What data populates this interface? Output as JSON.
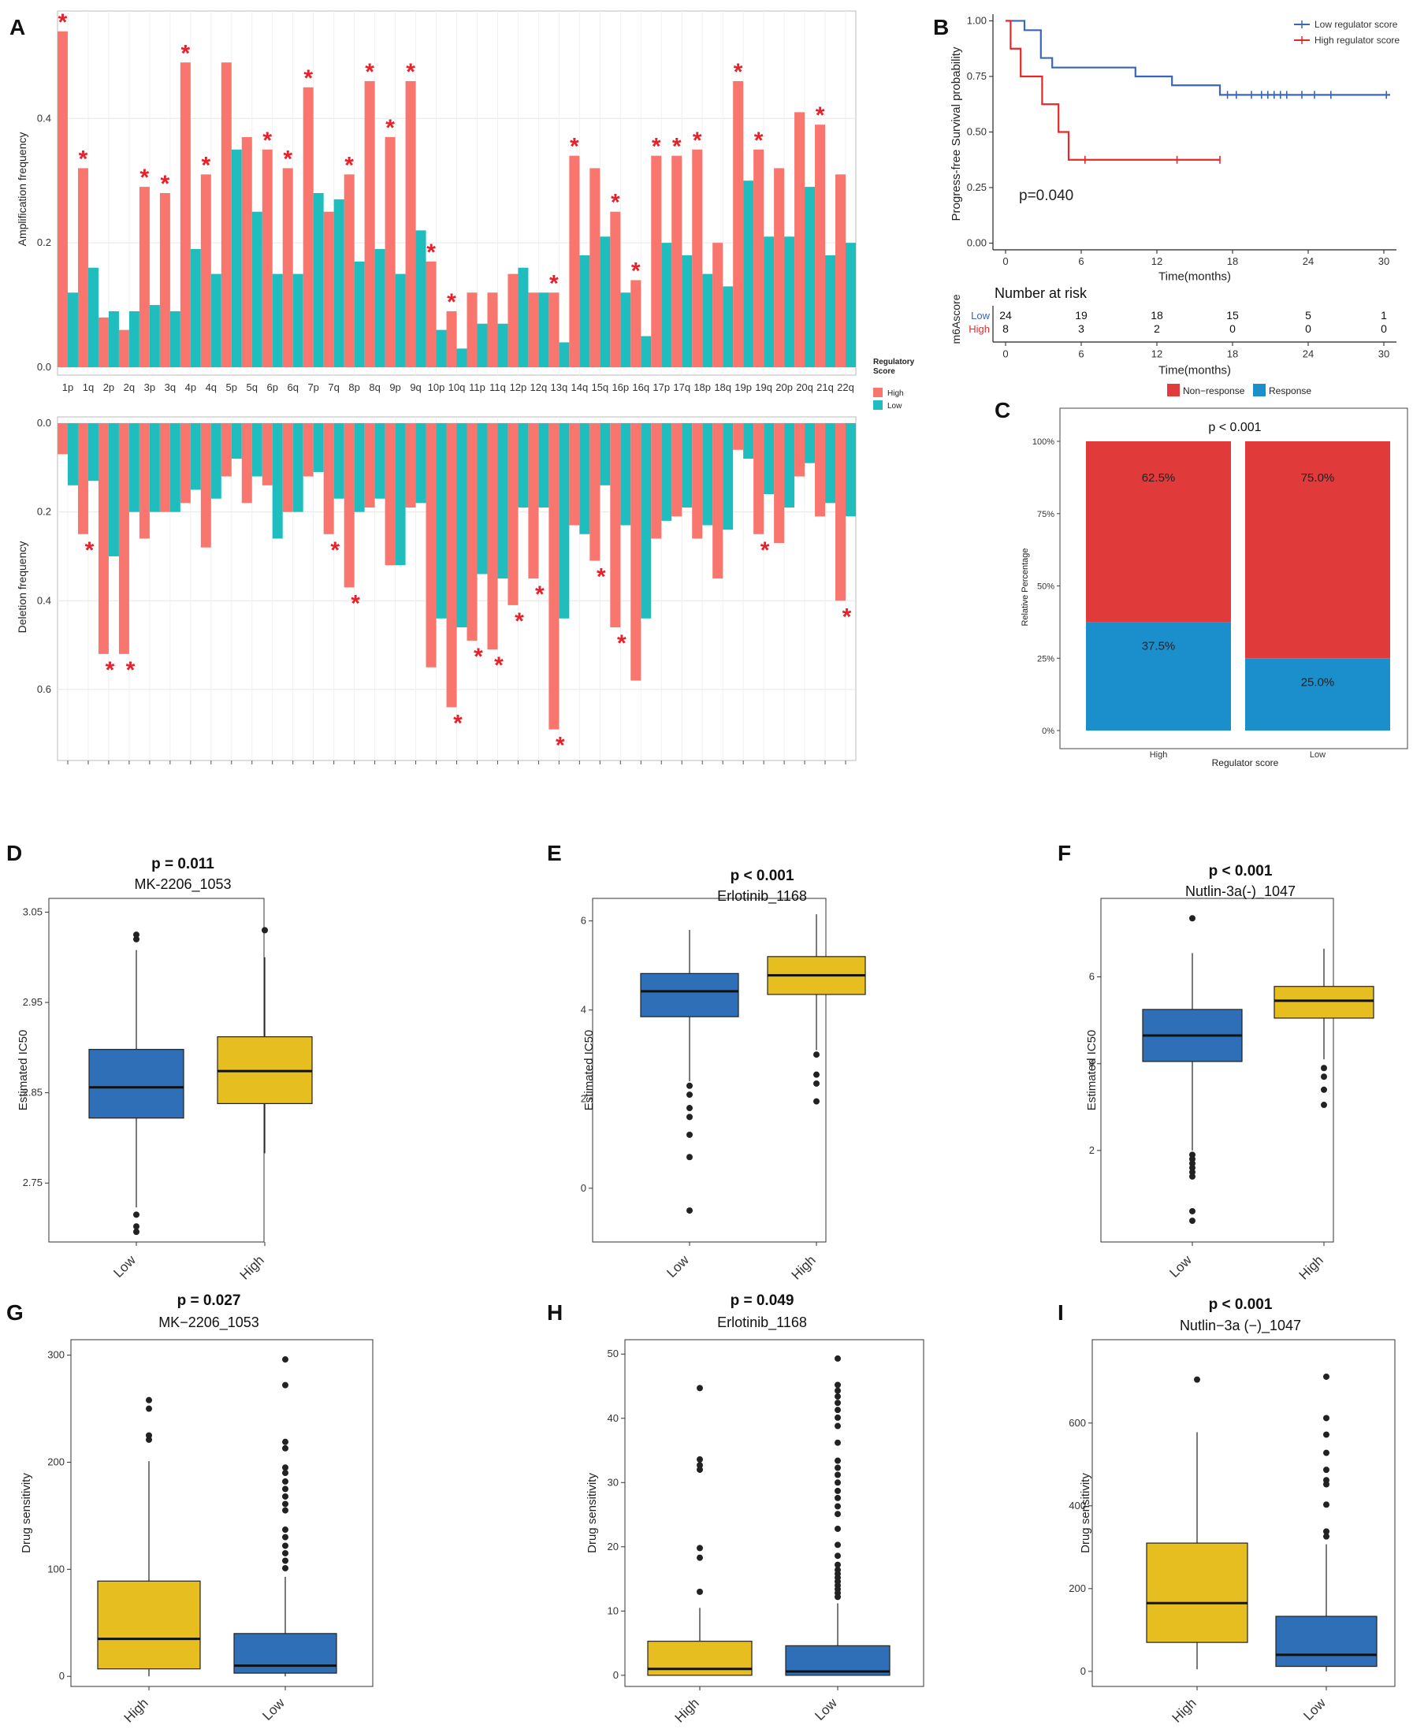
{
  "panel_labels": [
    "A",
    "B",
    "C",
    "D",
    "E",
    "F",
    "G",
    "H",
    "I"
  ],
  "colors": {
    "high": "#F8766D",
    "low": "#1FBDBD",
    "star": "#E8202A",
    "km_low": "#3A66B8",
    "km_high": "#E82828",
    "nonresp": "#E03A3A",
    "resp": "#1A8FCC",
    "box_blue": "#2E6FB7",
    "box_yellow": "#E6BE1F",
    "grid": "#E6E6E6",
    "panel_bg": "#FFFFFF"
  },
  "chart_data": [
    {
      "id": "A_amp",
      "type": "bar",
      "categories": [
        "1p",
        "1q",
        "2p",
        "2q",
        "3p",
        "3q",
        "4p",
        "4q",
        "5p",
        "5q",
        "6p",
        "6q",
        "7p",
        "7q",
        "8p",
        "8q",
        "9p",
        "9q",
        "10p",
        "10q",
        "11p",
        "11q",
        "12p",
        "12q",
        "13q",
        "14q",
        "15q",
        "16p",
        "16q",
        "17p",
        "17q",
        "18p",
        "18q",
        "19p",
        "19q",
        "20p",
        "20q",
        "21q",
        "22q"
      ],
      "series": [
        {
          "name": "High",
          "values": [
            0.54,
            0.32,
            0.08,
            0.06,
            0.29,
            0.28,
            0.49,
            0.31,
            0.49,
            0.37,
            0.35,
            0.32,
            0.45,
            0.25,
            0.31,
            0.46,
            0.37,
            0.46,
            0.17,
            0.09,
            0.12,
            0.12,
            0.15,
            0.12,
            0.12,
            0.34,
            0.32,
            0.25,
            0.14,
            0.34,
            0.34,
            0.35,
            0.2,
            0.46,
            0.35,
            0.32,
            0.41,
            0.39,
            0.31
          ]
        },
        {
          "name": "Low",
          "values": [
            0.12,
            0.16,
            0.09,
            0.09,
            0.1,
            0.09,
            0.19,
            0.15,
            0.35,
            0.25,
            0.15,
            0.15,
            0.28,
            0.27,
            0.17,
            0.19,
            0.15,
            0.22,
            0.06,
            0.03,
            0.07,
            0.07,
            0.16,
            0.12,
            0.04,
            0.18,
            0.21,
            0.12,
            0.05,
            0.2,
            0.18,
            0.15,
            0.13,
            0.3,
            0.21,
            0.21,
            0.29,
            0.18,
            0.2
          ]
        }
      ],
      "significant": [
        "1p",
        "1q",
        "3p",
        "3q",
        "4p",
        "4q",
        "6p",
        "6q",
        "7p",
        "8p",
        "8q",
        "9p",
        "9q",
        "10p",
        "10q",
        "13q",
        "14q",
        "16p",
        "16q",
        "17p",
        "17q",
        "18p",
        "19p",
        "19q",
        "21q"
      ],
      "ylabel": "Amplification frequency",
      "ylim": [
        0,
        0.56
      ],
      "yticks": [
        "0.0",
        "0.2",
        "0.4"
      ],
      "legend": {
        "title_line1": "Regulatory",
        "title_line2": "Score",
        "items": [
          "High",
          "Low"
        ]
      }
    },
    {
      "id": "A_del",
      "type": "bar",
      "categories": [
        "1p",
        "1q",
        "2p",
        "2q",
        "3p",
        "3q",
        "4p",
        "4q",
        "5p",
        "5q",
        "6p",
        "6q",
        "7p",
        "7q",
        "8p",
        "8q",
        "9p",
        "9q",
        "10p",
        "10q",
        "11p",
        "11q",
        "12p",
        "12q",
        "13q",
        "14q",
        "15q",
        "16p",
        "16q",
        "17p",
        "17q",
        "18p",
        "18q",
        "19p",
        "19q",
        "20p",
        "20q",
        "21q",
        "22q"
      ],
      "series": [
        {
          "name": "High",
          "values": [
            0.07,
            0.25,
            0.52,
            0.52,
            0.26,
            0.2,
            0.18,
            0.28,
            0.12,
            0.18,
            0.14,
            0.2,
            0.12,
            0.25,
            0.37,
            0.19,
            0.32,
            0.19,
            0.55,
            0.64,
            0.49,
            0.51,
            0.41,
            0.35,
            0.69,
            0.23,
            0.31,
            0.46,
            0.58,
            0.26,
            0.21,
            0.26,
            0.35,
            0.06,
            0.25,
            0.27,
            0.12,
            0.21,
            0.4
          ]
        },
        {
          "name": "Low",
          "values": [
            0.14,
            0.13,
            0.3,
            0.2,
            0.2,
            0.2,
            0.15,
            0.17,
            0.08,
            0.12,
            0.26,
            0.2,
            0.11,
            0.17,
            0.2,
            0.17,
            0.32,
            0.18,
            0.44,
            0.46,
            0.34,
            0.35,
            0.19,
            0.19,
            0.44,
            0.25,
            0.14,
            0.23,
            0.44,
            0.22,
            0.19,
            0.23,
            0.24,
            0.08,
            0.16,
            0.19,
            0.09,
            0.18,
            0.21
          ]
        }
      ],
      "significant": [
        "1q",
        "2p",
        "2q",
        "7q",
        "8p",
        "10q",
        "11p",
        "11q",
        "12p",
        "12q",
        "13q",
        "15q",
        "16p",
        "19q",
        "22q"
      ],
      "ylabel": "Deletion frequency",
      "ylim": [
        0,
        0.76
      ],
      "yticks": [
        "0.0",
        "0.2",
        "0.4",
        "0.6"
      ]
    },
    {
      "id": "B",
      "type": "line",
      "title": "",
      "xlabel": "Time(months)",
      "ylabel": "Progress-free Survival probability",
      "xlim": [
        -1,
        31
      ],
      "ylim": [
        -0.03,
        1.03
      ],
      "xticks": [
        "0",
        "6",
        "12",
        "18",
        "24",
        "30"
      ],
      "yticks": [
        "0.00",
        "0.25",
        "0.50",
        "0.75",
        "1.00"
      ],
      "series": [
        {
          "name": "Low regulator score",
          "x": [
            0,
            1.5,
            2.8,
            3.7,
            10.3,
            13.2,
            17,
            30.5
          ],
          "y": [
            1.0,
            0.958,
            0.833,
            0.79,
            0.75,
            0.71,
            0.667,
            0.667
          ],
          "censor_x": [
            17.6,
            18.3,
            19.5,
            20.3,
            20.8,
            21.3,
            21.8,
            22.3,
            23.5,
            24.5,
            25.8,
            30.2
          ]
        },
        {
          "name": "High regulator score",
          "x": [
            0,
            0.4,
            1.2,
            2.9,
            4.2,
            5.0,
            17
          ],
          "y": [
            1.0,
            0.875,
            0.75,
            0.625,
            0.5,
            0.375,
            0.375
          ],
          "censor_x": [
            6.3,
            13.6,
            17
          ]
        }
      ],
      "annotation": "p=0.040",
      "risk_table": {
        "title": "Number at risk",
        "ylabel": "m6Ascore",
        "xlabel": "Time(months)",
        "rows": [
          {
            "label": "Low",
            "values": [
              "24",
              "19",
              "18",
              "15",
              "5",
              "1"
            ]
          },
          {
            "label": "High",
            "values": [
              "8",
              "3",
              "2",
              "0",
              "0",
              "0"
            ]
          }
        ],
        "xticks": [
          "0",
          "6",
          "12",
          "18",
          "24",
          "30"
        ]
      }
    },
    {
      "id": "C",
      "type": "bar",
      "stacked": true,
      "title": "p < 0.001",
      "xlabel": "Regulator score",
      "ylabel": "Relative Percentage",
      "categories": [
        "High",
        "Low"
      ],
      "series": [
        {
          "name": "Response",
          "values": [
            37.5,
            25.0
          ]
        },
        {
          "name": "Non−response",
          "values": [
            62.5,
            75.0
          ]
        }
      ],
      "labels": {
        "High": {
          "Non−response": "62.5%",
          "Response": "37.5%"
        },
        "Low": {
          "Non−response": "75.0%",
          "Response": "25.0%"
        }
      },
      "yticks": [
        "0%",
        "25%",
        "50%",
        "75%",
        "100%"
      ],
      "legend": [
        "Non−response",
        "Response"
      ]
    },
    {
      "id": "D",
      "type": "box",
      "title_bold": "p = 0.011",
      "title": "MK-2206_1053",
      "ylabel": "Estimated IC50",
      "ylim": [
        2.69,
        3.06
      ],
      "yticks": [
        {
          "v": 2.75,
          "t": "2.75"
        },
        {
          "v": 2.85,
          "t": "2.85"
        },
        {
          "v": 2.95,
          "t": "2.95"
        },
        {
          "v": 3.05,
          "t": "3.05"
        }
      ],
      "categories": [
        "Low",
        "High"
      ],
      "boxes": [
        {
          "q1": 2.822,
          "median": 2.856,
          "q3": 2.898,
          "wlow": 2.723,
          "whigh": 3.008,
          "color": "blue",
          "outliers": [
            3.025,
            3.02,
            2.715,
            2.702,
            2.696
          ]
        },
        {
          "q1": 2.838,
          "median": 2.874,
          "q3": 2.912,
          "wlow": 2.783,
          "whigh": 3.0,
          "color": "yellow",
          "outliers": [
            3.03
          ]
        }
      ]
    },
    {
      "id": "E",
      "type": "box",
      "title_bold": "p < 0.001",
      "title": "Erlotinib_1168",
      "ylabel": "Estimated IC50",
      "ylim": [
        -1.1,
        6.4
      ],
      "yticks": [
        {
          "v": 0,
          "t": "0"
        },
        {
          "v": 2,
          "t": "2"
        },
        {
          "v": 4,
          "t": "4"
        },
        {
          "v": 6,
          "t": "6"
        }
      ],
      "categories": [
        "Low",
        "High"
      ],
      "boxes": [
        {
          "q1": 3.85,
          "median": 4.42,
          "q3": 4.82,
          "wlow": 2.4,
          "whigh": 5.8,
          "color": "blue",
          "outliers": [
            2.3,
            2.1,
            1.8,
            1.6,
            1.2,
            0.7,
            -0.5
          ]
        },
        {
          "q1": 4.35,
          "median": 4.78,
          "q3": 5.2,
          "wlow": 3.1,
          "whigh": 6.15,
          "color": "yellow",
          "outliers": [
            3.0,
            2.55,
            2.35,
            1.95
          ]
        }
      ]
    },
    {
      "id": "F",
      "type": "box",
      "title_bold": "p < 0.001",
      "title": "Nutlin-3a(-)_1047",
      "ylabel": "Estimated IC50",
      "ylim": [
        0,
        7.7
      ],
      "yticks": [
        {
          "v": 2,
          "t": "2"
        },
        {
          "v": 4,
          "t": "4"
        },
        {
          "v": 6,
          "t": "6"
        }
      ],
      "categories": [
        "Low",
        "High"
      ],
      "boxes": [
        {
          "q1": 4.05,
          "median": 4.65,
          "q3": 5.25,
          "wlow": 2.0,
          "whigh": 6.55,
          "color": "blue",
          "outliers": [
            7.35,
            1.9,
            1.8,
            1.7,
            1.6,
            1.5,
            1.4,
            0.6,
            0.38
          ]
        },
        {
          "q1": 5.05,
          "median": 5.45,
          "q3": 5.78,
          "wlow": 4.1,
          "whigh": 6.65,
          "color": "yellow",
          "outliers": [
            3.9,
            3.7,
            3.4,
            3.05
          ]
        }
      ]
    },
    {
      "id": "G",
      "type": "box",
      "title_bold": "p = 0.027",
      "title": "MK−2206_1053",
      "ylabel": "Drug sensitivity",
      "ylim": [
        -5,
        310
      ],
      "yticks": [
        {
          "v": 0,
          "t": "0"
        },
        {
          "v": 100,
          "t": "100"
        },
        {
          "v": 200,
          "t": "200"
        },
        {
          "v": 300,
          "t": "300"
        }
      ],
      "categories": [
        "High",
        "Low"
      ],
      "boxes": [
        {
          "q1": 7,
          "median": 35,
          "q3": 89,
          "wlow": 0,
          "whigh": 201,
          "color": "yellow",
          "outliers": [
            258,
            250,
            225,
            221
          ]
        },
        {
          "q1": 3,
          "median": 10,
          "q3": 40,
          "wlow": 0,
          "whigh": 93,
          "color": "blue",
          "outliers": [
            296,
            272,
            219,
            213,
            195,
            190,
            182,
            175,
            168,
            161,
            155,
            137,
            130,
            122,
            115,
            108,
            101
          ]
        }
      ]
    },
    {
      "id": "H",
      "type": "box",
      "title_bold": "p = 0.049",
      "title": "Erlotinib_1168",
      "ylabel": "Drug sensitivity",
      "ylim": [
        -1,
        51.5
      ],
      "yticks": [
        {
          "v": 0,
          "t": "0"
        },
        {
          "v": 10,
          "t": "10"
        },
        {
          "v": 20,
          "t": "20"
        },
        {
          "v": 30,
          "t": "30"
        },
        {
          "v": 40,
          "t": "40"
        },
        {
          "v": 50,
          "t": "50"
        }
      ],
      "categories": [
        "High",
        "Low"
      ],
      "boxes": [
        {
          "q1": 0,
          "median": 1,
          "q3": 5.3,
          "wlow": 0,
          "whigh": 10.5,
          "color": "yellow",
          "outliers": [
            44.7,
            33.6,
            32.7,
            32.0,
            19.8,
            18.3,
            13.0
          ]
        },
        {
          "q1": 0,
          "median": 0.6,
          "q3": 4.6,
          "wlow": 0,
          "whigh": 11.2,
          "color": "blue",
          "outliers": [
            49.3,
            45.2,
            44.3,
            43.4,
            42.4,
            41.3,
            40.1,
            38.8,
            36.2,
            33.4,
            32.3,
            31.2,
            30.0,
            28.7,
            27.6,
            26.3,
            25.1,
            22.8,
            20.3,
            18.6,
            17.2,
            16.4,
            15.8,
            15.2,
            14.6,
            14.0,
            13.4,
            12.8,
            12.2
          ]
        }
      ]
    },
    {
      "id": "I",
      "type": "box",
      "title_bold": "p < 0.001",
      "title": "Nutlin−3a (−)_1047",
      "ylabel": "Drug sensitivity",
      "ylim": [
        -25,
        790
      ],
      "yticks": [
        {
          "v": 0,
          "t": "0"
        },
        {
          "v": 200,
          "t": "200"
        },
        {
          "v": 400,
          "t": "400"
        },
        {
          "v": 600,
          "t": "600"
        }
      ],
      "categories": [
        "High",
        "Low"
      ],
      "boxes": [
        {
          "q1": 70,
          "median": 165,
          "q3": 310,
          "wlow": 5,
          "whigh": 578,
          "color": "yellow",
          "outliers": [
            705
          ]
        },
        {
          "q1": 12,
          "median": 40,
          "q3": 133,
          "wlow": 0,
          "whigh": 307,
          "color": "blue",
          "outliers": [
            712,
            612,
            572,
            528,
            487,
            462,
            452,
            403,
            338,
            326
          ]
        }
      ]
    }
  ]
}
